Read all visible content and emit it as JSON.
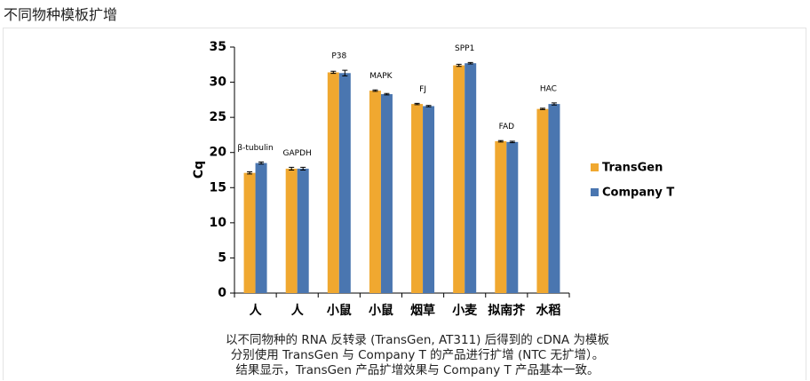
{
  "header": "不同物种模板扩增",
  "caption": [
    "以不同物种的 RNA 反转录 (TransGen, AT311) 后得到的 cDNA 为模板",
    "分别使用 TransGen 与 Company T 的产品进行扩增 (NTC 无扩增）。",
    "结果显示，TransGen 产品扩增效果与 Company T 产品基本一致。"
  ],
  "chart_data": {
    "type": "bar",
    "y_label": "Cq",
    "categories": [
      "人",
      "人",
      "小鼠",
      "小鼠",
      "烟草",
      "小麦",
      "拟南芥",
      "水稻"
    ],
    "annotations": [
      "β-tubulin",
      "GAPDH",
      "P38",
      "MAPK",
      "FJ",
      "SPP1",
      "FAD",
      "HAC"
    ],
    "series": [
      {
        "name": "TransGen",
        "color": "#f0a830",
        "values": [
          17.1,
          17.7,
          31.4,
          28.8,
          26.9,
          32.4,
          21.6,
          26.2
        ],
        "errors": [
          0.15,
          0.2,
          0.15,
          0.1,
          0.1,
          0.15,
          0.1,
          0.1
        ]
      },
      {
        "name": "Company T",
        "color": "#4a76b0",
        "values": [
          18.5,
          17.7,
          31.3,
          28.3,
          26.6,
          32.7,
          21.5,
          26.9
        ],
        "errors": [
          0.15,
          0.2,
          0.4,
          0.1,
          0.1,
          0.1,
          0.1,
          0.15
        ]
      }
    ],
    "ylim": [
      0,
      35
    ],
    "yticks": [
      0,
      5,
      10,
      15,
      20,
      25,
      30,
      35
    ],
    "legend": "right"
  }
}
